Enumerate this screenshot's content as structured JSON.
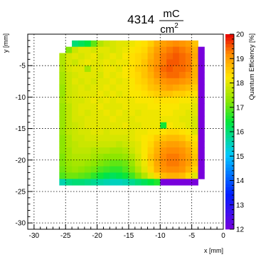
{
  "chart_data": {
    "type": "heatmap",
    "title": {
      "value": "4314",
      "unit_numerator": "mC",
      "unit_denominator": "cm",
      "unit_denominator_exponent": "2"
    },
    "xlabel": "x [mm]",
    "ylabel": "y [mm]",
    "zlabel": "Quantum Efficiency [%]",
    "xlim": [
      -31,
      0
    ],
    "ylim": [
      -31,
      0
    ],
    "zlim": [
      12,
      20
    ],
    "grid": true,
    "x_ticks": [
      -30,
      -25,
      -20,
      -15,
      -10,
      -5,
      0
    ],
    "y_ticks": [
      -5,
      -10,
      -15,
      -20,
      -25,
      -30
    ],
    "z_ticks": [
      12,
      13,
      14,
      15,
      16,
      17,
      18,
      19,
      20
    ],
    "cell_size": 1,
    "grid_x": [
      -25.5,
      -24.5,
      -23.5,
      -22.5,
      -21.5,
      -20.5,
      -19.5,
      -18.5,
      -17.5,
      -16.5,
      -15.5,
      -14.5,
      -13.5,
      -12.5,
      -11.5,
      -10.5,
      -9.5,
      -8.5,
      -7.5,
      -6.5,
      -5.5,
      -4.5,
      -3.5
    ],
    "grid_y": [
      -1.5,
      -2.5,
      -3.5,
      -4.5,
      -5.5,
      -6.5,
      -7.5,
      -8.5,
      -9.5,
      -10.5,
      -11.5,
      -12.5,
      -13.5,
      -14.5,
      -15.5,
      -16.5,
      -17.5,
      -18.5,
      -19.5,
      -20.5,
      -21.5,
      -22.5,
      -23.5
    ],
    "qe_percent": [
      [
        null,
        null,
        16.0,
        16.2,
        16.4,
        17.0,
        17.6,
        17.8,
        17.9,
        18.0,
        18.0,
        18.1,
        18.2,
        18.3,
        18.5,
        18.8,
        19.0,
        19.1,
        19.2,
        19.1,
        19.0,
        18.6,
        null
      ],
      [
        null,
        17.2,
        17.8,
        18.0,
        18.0,
        17.9,
        18.0,
        18.0,
        17.9,
        18.0,
        18.1,
        18.2,
        18.3,
        18.4,
        18.7,
        19.0,
        19.2,
        19.3,
        19.4,
        19.3,
        19.2,
        18.8,
        12.0
      ],
      [
        17.6,
        17.9,
        18.0,
        17.9,
        18.0,
        18.1,
        17.9,
        18.0,
        18.1,
        18.0,
        18.2,
        18.3,
        18.4,
        18.5,
        18.8,
        19.1,
        19.3,
        19.4,
        19.5,
        19.4,
        19.3,
        18.9,
        12.0
      ],
      [
        17.6,
        17.9,
        17.8,
        18.0,
        18.1,
        18.0,
        18.0,
        18.1,
        18.0,
        18.1,
        18.1,
        18.3,
        18.4,
        18.6,
        18.9,
        19.1,
        19.3,
        19.5,
        19.5,
        19.4,
        19.3,
        18.8,
        12.0
      ],
      [
        17.6,
        17.9,
        18.0,
        18.0,
        17.5,
        18.0,
        18.0,
        18.1,
        18.1,
        18.0,
        18.2,
        18.3,
        18.5,
        18.6,
        18.9,
        19.2,
        19.4,
        19.5,
        19.4,
        19.4,
        19.3,
        18.8,
        12.0
      ],
      [
        17.5,
        17.8,
        17.9,
        18.0,
        18.0,
        18.0,
        17.9,
        18.1,
        18.0,
        18.1,
        18.2,
        18.3,
        18.4,
        18.6,
        18.8,
        19.1,
        19.3,
        19.4,
        19.4,
        19.3,
        19.2,
        18.8,
        12.0
      ],
      [
        17.5,
        17.8,
        18.0,
        17.9,
        18.0,
        17.9,
        18.0,
        18.0,
        18.1,
        18.0,
        18.1,
        18.2,
        18.4,
        18.5,
        18.7,
        18.9,
        19.1,
        19.2,
        19.2,
        19.1,
        19.0,
        18.7,
        12.0
      ],
      [
        17.4,
        17.8,
        17.9,
        18.0,
        17.9,
        18.0,
        18.0,
        18.1,
        18.0,
        18.1,
        18.1,
        18.2,
        18.3,
        18.4,
        18.6,
        18.7,
        18.9,
        19.0,
        18.9,
        18.8,
        18.7,
        18.5,
        12.0
      ],
      [
        17.4,
        17.8,
        17.9,
        18.0,
        18.0,
        18.0,
        18.1,
        18.0,
        18.1,
        18.0,
        18.1,
        18.2,
        18.2,
        18.3,
        18.4,
        18.5,
        18.6,
        18.6,
        18.5,
        18.5,
        18.4,
        18.3,
        12.0
      ],
      [
        17.5,
        17.8,
        17.9,
        17.9,
        18.0,
        18.1,
        18.0,
        18.1,
        18.0,
        18.1,
        18.1,
        18.1,
        18.2,
        18.2,
        18.2,
        18.3,
        18.3,
        18.3,
        18.3,
        18.2,
        18.2,
        18.1,
        12.0
      ],
      [
        17.4,
        17.7,
        17.9,
        18.0,
        18.0,
        18.0,
        18.1,
        18.0,
        18.0,
        18.0,
        18.1,
        18.1,
        18.1,
        18.1,
        18.2,
        18.2,
        18.2,
        18.2,
        18.2,
        18.1,
        18.1,
        18.0,
        12.0
      ],
      [
        17.4,
        17.7,
        17.9,
        18.0,
        17.9,
        18.0,
        18.0,
        18.1,
        18.0,
        18.1,
        18.0,
        18.1,
        18.0,
        18.1,
        18.1,
        18.1,
        18.2,
        18.2,
        18.1,
        18.1,
        18.0,
        18.0,
        12.0
      ],
      [
        17.4,
        17.7,
        17.9,
        17.9,
        18.0,
        18.0,
        18.0,
        18.0,
        18.1,
        18.0,
        18.0,
        18.0,
        18.1,
        18.1,
        18.1,
        18.1,
        18.1,
        18.1,
        18.1,
        18.0,
        18.0,
        17.9,
        12.0
      ],
      [
        17.4,
        17.7,
        17.8,
        17.9,
        18.0,
        18.0,
        18.0,
        18.0,
        18.0,
        18.0,
        18.1,
        18.0,
        18.0,
        18.1,
        18.1,
        18.1,
        16.5,
        18.2,
        18.1,
        18.1,
        18.0,
        17.9,
        12.0
      ],
      [
        17.4,
        17.7,
        17.8,
        17.9,
        17.9,
        18.0,
        18.0,
        17.9,
        18.0,
        18.0,
        18.0,
        18.0,
        18.1,
        18.1,
        18.2,
        18.2,
        18.3,
        18.4,
        18.4,
        18.3,
        18.2,
        18.0,
        12.0
      ],
      [
        17.3,
        17.6,
        17.8,
        17.8,
        17.9,
        17.9,
        17.9,
        17.9,
        17.9,
        17.9,
        17.9,
        18.0,
        18.1,
        18.2,
        18.3,
        18.5,
        18.6,
        18.7,
        18.7,
        18.6,
        18.4,
        18.2,
        12.0
      ],
      [
        17.3,
        17.6,
        17.7,
        17.8,
        17.8,
        17.8,
        17.8,
        17.8,
        17.8,
        17.7,
        17.8,
        17.9,
        18.0,
        18.2,
        18.4,
        18.7,
        18.9,
        19.0,
        19.0,
        18.9,
        18.7,
        18.4,
        12.0
      ],
      [
        17.3,
        17.5,
        17.7,
        17.7,
        17.7,
        17.6,
        17.6,
        17.6,
        17.5,
        17.5,
        17.6,
        17.8,
        18.0,
        18.2,
        18.5,
        18.8,
        19.1,
        19.2,
        19.2,
        19.1,
        18.9,
        18.5,
        12.0
      ],
      [
        17.2,
        17.5,
        17.6,
        17.6,
        17.6,
        17.5,
        17.4,
        17.3,
        17.3,
        17.3,
        17.4,
        17.6,
        17.9,
        18.2,
        18.6,
        18.9,
        19.2,
        19.3,
        19.3,
        19.2,
        19.0,
        18.6,
        12.0
      ],
      [
        17.2,
        17.4,
        17.5,
        17.5,
        17.4,
        17.3,
        17.2,
        17.1,
        17.0,
        17.0,
        17.1,
        17.4,
        17.8,
        18.1,
        18.5,
        18.9,
        19.2,
        19.3,
        19.3,
        19.2,
        19.0,
        18.6,
        12.0
      ],
      [
        17.1,
        17.3,
        17.4,
        17.3,
        17.2,
        17.1,
        16.9,
        16.8,
        16.7,
        16.7,
        16.9,
        17.2,
        17.6,
        18.0,
        18.4,
        18.8,
        19.1,
        19.2,
        19.2,
        19.1,
        18.8,
        18.4,
        12.0
      ],
      [
        16.9,
        17.1,
        17.1,
        17.0,
        16.9,
        16.7,
        16.5,
        16.3,
        16.2,
        16.3,
        16.5,
        16.8,
        17.2,
        17.6,
        18.0,
        18.4,
        18.7,
        18.8,
        18.8,
        18.7,
        18.4,
        18.0,
        12.0
      ],
      [
        15.6,
        15.9,
        16.0,
        16.0,
        15.9,
        15.8,
        15.7,
        15.6,
        15.5,
        15.5,
        15.6,
        15.8,
        16.0,
        16.2,
        16.4,
        16.6,
        12.0,
        12.0,
        12.0,
        12.0,
        12.0,
        12.0,
        null
      ]
    ]
  }
}
